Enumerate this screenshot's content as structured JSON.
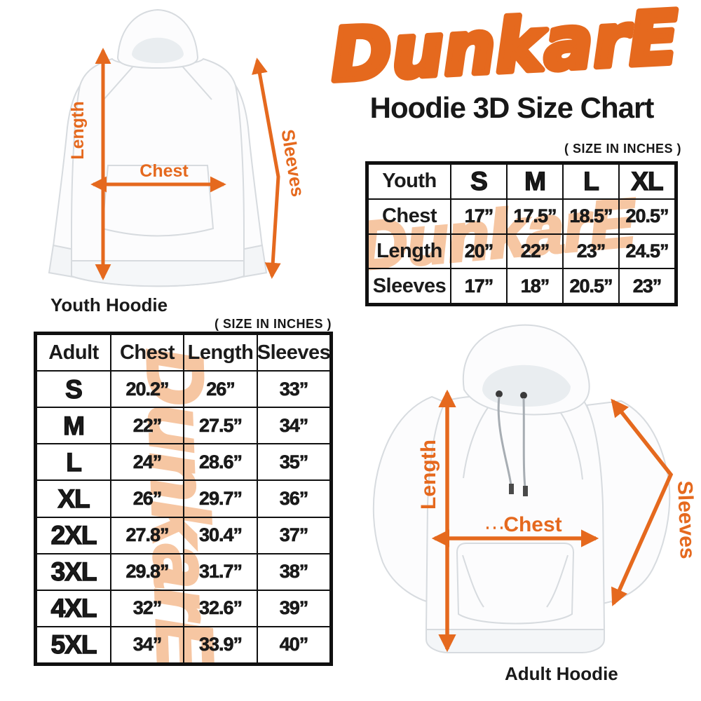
{
  "brand": {
    "logo_text": "DunkarE",
    "logo_color": "#E5691E",
    "title": "Hoodie 3D Size Chart"
  },
  "colors": {
    "accent_orange": "#E5691E",
    "watermark_peach": "#F6C6A2",
    "text_black": "#1B1B1B",
    "table_border": "#101010",
    "background": "#FFFFFF"
  },
  "youth_section": {
    "caption": "Youth Hoodie",
    "size_note": "( SIZE IN INCHES )",
    "labels": {
      "length": "Length",
      "chest": "Chest",
      "sleeves": "Sleeves"
    }
  },
  "adult_section": {
    "caption": "Adult Hoodie",
    "size_note": "( SIZE IN INCHES )",
    "labels": {
      "length": "Length",
      "chest": "Chest",
      "sleeves": "Sleeves"
    }
  },
  "youth_table": {
    "header": [
      "Youth",
      "S",
      "M",
      "L",
      "XL"
    ],
    "rows": [
      [
        "Chest",
        "17”",
        "17.5”",
        "18.5”",
        "20.5”"
      ],
      [
        "Length",
        "20”",
        "22”",
        "23”",
        "24.5”"
      ],
      [
        "Sleeves",
        "17”",
        "18”",
        "20.5”",
        "23”"
      ]
    ]
  },
  "adult_table": {
    "header": [
      "Adult",
      "Chest",
      "Length",
      "Sleeves"
    ],
    "rows": [
      [
        "S",
        "20.2”",
        "26”",
        "33”"
      ],
      [
        "M",
        "22”",
        "27.5”",
        "34”"
      ],
      [
        "L",
        "24”",
        "28.6”",
        "35”"
      ],
      [
        "XL",
        "26”",
        "29.7”",
        "36”"
      ],
      [
        "2XL",
        "27.8”",
        "30.4”",
        "37”"
      ],
      [
        "3XL",
        "29.8”",
        "31.7”",
        "38”"
      ],
      [
        "4XL",
        "32”",
        "32.6”",
        "39”"
      ],
      [
        "5XL",
        "34”",
        "33.9”",
        "40”"
      ]
    ]
  },
  "chart_data": [
    {
      "type": "table",
      "title": "Youth Hoodie sizes (inches)",
      "columns": [
        "Youth",
        "S",
        "M",
        "L",
        "XL"
      ],
      "rows": [
        [
          "Chest",
          17,
          17.5,
          18.5,
          20.5
        ],
        [
          "Length",
          20,
          22,
          23,
          24.5
        ],
        [
          "Sleeves",
          17,
          18,
          20.5,
          23
        ]
      ]
    },
    {
      "type": "table",
      "title": "Adult Hoodie sizes (inches)",
      "columns": [
        "Adult",
        "Chest",
        "Length",
        "Sleeves"
      ],
      "rows": [
        [
          "S",
          20.2,
          26,
          33
        ],
        [
          "M",
          22,
          27.5,
          34
        ],
        [
          "L",
          24,
          28.6,
          35
        ],
        [
          "XL",
          26,
          29.7,
          36
        ],
        [
          "2XL",
          27.8,
          30.4,
          37
        ],
        [
          "3XL",
          29.8,
          31.7,
          38
        ],
        [
          "4XL",
          32,
          32.6,
          39
        ],
        [
          "5XL",
          34,
          33.9,
          40
        ]
      ]
    }
  ]
}
